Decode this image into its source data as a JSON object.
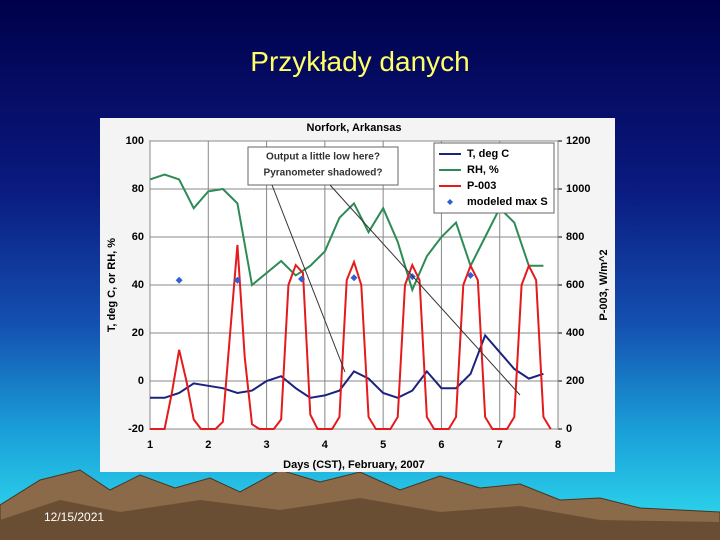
{
  "slide": {
    "title": "Przykłady danych",
    "date": "12/15/2021"
  },
  "chart_data": {
    "type": "line",
    "title": "Norfork, Arkansas",
    "x_label": "Days (CST), February, 2007",
    "y_label": "T, deg C, or RH, %",
    "y2_label": "P-003, W/m^2",
    "annotations": [
      "Output a little low here?",
      "Pyranometer shadowed?"
    ],
    "xlim": [
      1,
      8
    ],
    "xticks": [
      1,
      2,
      3,
      4,
      5,
      6,
      7,
      8
    ],
    "ylim": [
      -20,
      100
    ],
    "yticks": [
      -20,
      0,
      20,
      40,
      60,
      80,
      100
    ],
    "y2lim": [
      0,
      1200
    ],
    "y2ticks": [
      0,
      200,
      400,
      600,
      800,
      1000,
      1200
    ],
    "grid": true,
    "legend": "upper right",
    "series": [
      {
        "name": "T, deg C",
        "color": "#1a237e",
        "mode": "lines",
        "x": [
          1,
          1.25,
          1.5,
          1.75,
          2,
          2.25,
          2.5,
          2.75,
          3,
          3.25,
          3.5,
          3.75,
          4,
          4.25,
          4.5,
          4.75,
          5,
          5.25,
          5.5,
          5.75,
          6,
          6.25,
          6.5,
          6.75,
          7,
          7.25,
          7.5,
          7.75
        ],
        "values": [
          -7,
          -7,
          -5,
          -1,
          -2,
          -3,
          -5,
          -4,
          0,
          2,
          -3,
          -7,
          -6,
          -4,
          4,
          1,
          -5,
          -7,
          -4,
          4,
          -3,
          -3,
          3,
          19,
          12,
          5,
          1,
          3
        ]
      },
      {
        "name": "RH, %",
        "color": "#2e8b57",
        "mode": "lines",
        "x": [
          1,
          1.25,
          1.5,
          1.75,
          2,
          2.25,
          2.5,
          2.75,
          3,
          3.25,
          3.5,
          3.75,
          4,
          4.25,
          4.5,
          4.75,
          5,
          5.25,
          5.5,
          5.75,
          6,
          6.25,
          6.5,
          6.75,
          7,
          7.25,
          7.5,
          7.75
        ],
        "values": [
          84,
          86,
          84,
          72,
          79,
          80,
          74,
          40,
          45,
          50,
          44,
          48,
          54,
          68,
          74,
          62,
          72,
          58,
          38,
          52,
          60,
          66,
          48,
          60,
          72,
          66,
          48,
          48
        ]
      },
      {
        "name": "P-003",
        "color": "#e41a1c",
        "mode": "lines",
        "axis": "y2",
        "x": [
          1,
          1.125,
          1.25,
          1.375,
          1.5,
          1.625,
          1.75,
          1.875,
          2,
          2.125,
          2.25,
          2.375,
          2.5,
          2.625,
          2.75,
          2.875,
          3,
          3.125,
          3.25,
          3.375,
          3.5,
          3.625,
          3.75,
          3.875,
          4,
          4.125,
          4.25,
          4.375,
          4.5,
          4.625,
          4.75,
          4.875,
          5,
          5.125,
          5.25,
          5.375,
          5.5,
          5.625,
          5.75,
          5.875,
          6,
          6.125,
          6.25,
          6.375,
          6.5,
          6.625,
          6.75,
          6.875,
          7,
          7.125,
          7.25,
          7.375,
          7.5,
          7.625,
          7.75,
          7.875
        ],
        "values": [
          0,
          0,
          0,
          150,
          330,
          200,
          40,
          0,
          0,
          0,
          30,
          400,
          767,
          300,
          20,
          0,
          0,
          0,
          40,
          600,
          683,
          650,
          60,
          0,
          0,
          0,
          50,
          620,
          696,
          600,
          50,
          0,
          0,
          0,
          50,
          600,
          683,
          620,
          50,
          0,
          0,
          0,
          50,
          600,
          680,
          620,
          50,
          0,
          0,
          0,
          50,
          600,
          680,
          620,
          50,
          0
        ]
      },
      {
        "name": "modeled max S",
        "color": "#3060d0",
        "mode": "markers",
        "axis": "y2",
        "x": [
          1.5,
          2.5,
          3.6,
          4.5,
          5.5,
          6.5
        ],
        "values": [
          620,
          620,
          625,
          630,
          635,
          640
        ]
      }
    ]
  }
}
